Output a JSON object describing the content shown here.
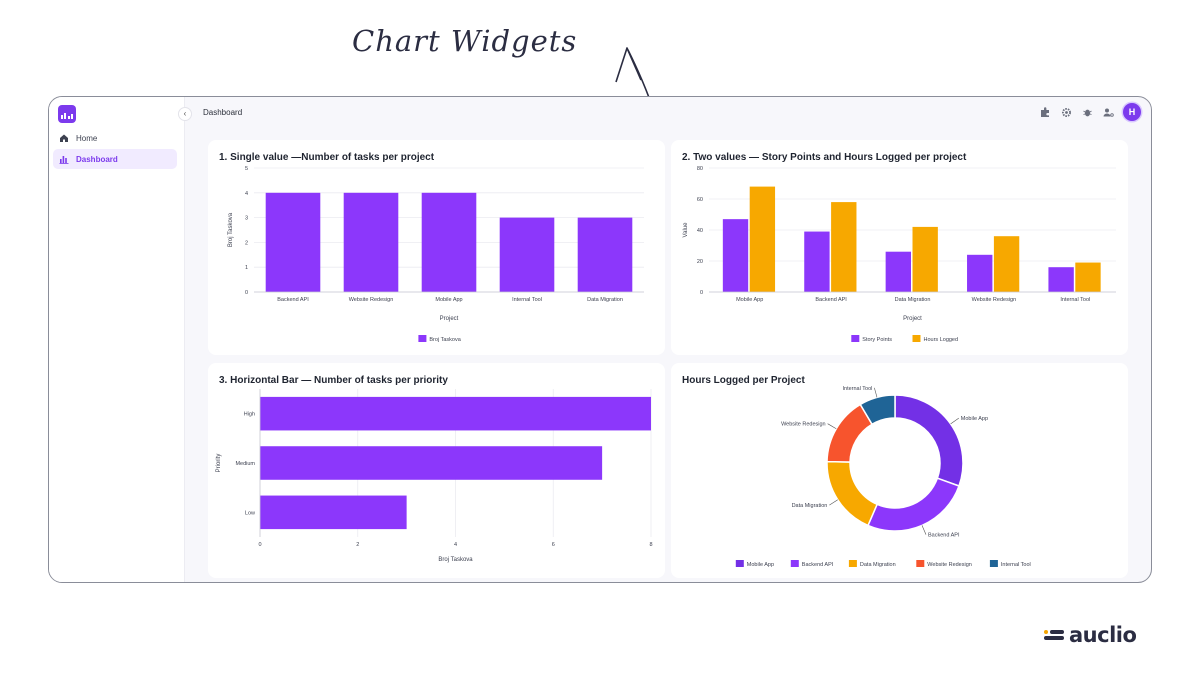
{
  "annotation": {
    "text": "Chart Widgets"
  },
  "sidebar": {
    "collapse_icon": "‹",
    "items": [
      {
        "label": "Home",
        "icon": "home-icon",
        "active": false
      },
      {
        "label": "Dashboard",
        "icon": "bar-chart-icon",
        "active": true
      }
    ]
  },
  "header": {
    "title": "Dashboard",
    "icons": [
      "puzzle-icon",
      "settings-icon",
      "bug-icon",
      "user-settings-icon"
    ],
    "avatar_initial": "H"
  },
  "colors": {
    "purple": "#8c37fb",
    "orange": "#f7a800",
    "pie": [
      "#7330e6",
      "#8c37fb",
      "#f7a800",
      "#f7542d",
      "#1f6496"
    ]
  },
  "chart_data": [
    {
      "type": "bar",
      "title": "1. Single value —Number of tasks per project",
      "categories": [
        "Backend API",
        "Website Redesign",
        "Mobile App",
        "Internal Tool",
        "Data Migration"
      ],
      "series": [
        {
          "name": "Broj Taskova",
          "values": [
            4,
            4,
            4,
            3,
            3
          ]
        }
      ],
      "xlabel": "Project",
      "ylabel": "Broj Taskova",
      "ylim": [
        0,
        5
      ],
      "yticks": [
        "0",
        "1",
        "2",
        "3",
        "4",
        "5"
      ],
      "grid": true,
      "legend": "bottom"
    },
    {
      "type": "bar",
      "title": "2. Two values — Story Points and Hours Logged per project",
      "categories": [
        "Mobile App",
        "Backend API",
        "Data Migration",
        "Website Redesign",
        "Internal Tool"
      ],
      "series": [
        {
          "name": "Story Points",
          "values": [
            47,
            39,
            26,
            24,
            16
          ]
        },
        {
          "name": "Hours Logged",
          "values": [
            68,
            58,
            42,
            36,
            19
          ]
        }
      ],
      "xlabel": "Project",
      "ylabel": "Value",
      "ylim": [
        0,
        80
      ],
      "yticks": [
        "0",
        "20",
        "40",
        "60",
        "80"
      ],
      "grid": true,
      "legend": "bottom"
    },
    {
      "type": "bar",
      "orientation": "horizontal",
      "title": "3. Horizontal Bar — Number of tasks per priority",
      "categories": [
        "High",
        "Medium",
        "Low"
      ],
      "series": [
        {
          "name": "Broj Taskova",
          "values": [
            8,
            7,
            3
          ]
        }
      ],
      "xlabel": "Broj Taskova",
      "ylabel": "Priority",
      "xlim": [
        0,
        8
      ],
      "xticks": [
        "0",
        "2",
        "4",
        "6",
        "8"
      ],
      "grid": true
    },
    {
      "type": "pie",
      "donut": true,
      "title": "Hours Logged per Project",
      "labels": [
        "Mobile App",
        "Backend API",
        "Data Migration",
        "Website Redesign",
        "Internal Tool"
      ],
      "values": [
        68,
        58,
        42,
        36,
        19
      ],
      "legend": "bottom"
    }
  ],
  "brand": {
    "name": "auclio"
  }
}
